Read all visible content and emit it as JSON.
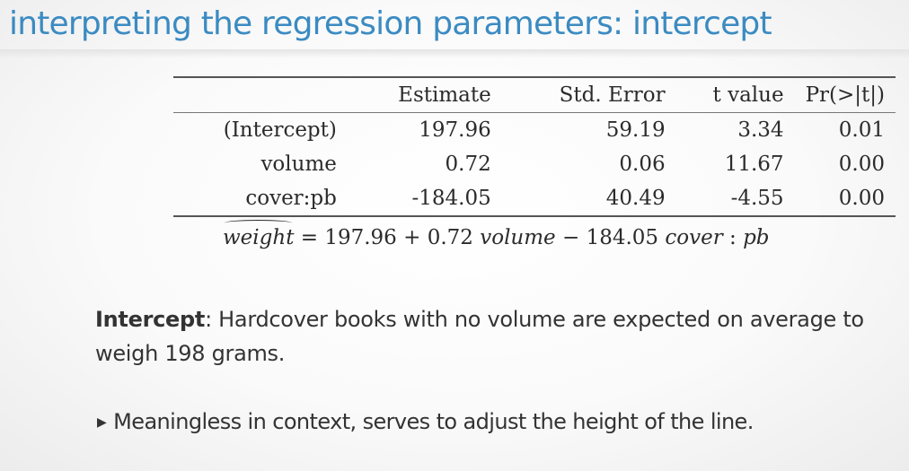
{
  "slide": {
    "title": "interpreting the regression parameters: intercept"
  },
  "table": {
    "headers": [
      "",
      "Estimate",
      "Std. Error",
      "t value",
      "Pr(>|t|)"
    ],
    "rows": [
      [
        "(Intercept)",
        "197.96",
        "59.19",
        "3.34",
        "0.01"
      ],
      [
        "volume",
        "0.72",
        "0.06",
        "11.67",
        "0.00"
      ],
      [
        "cover:pb",
        "-184.05",
        "40.49",
        "-4.55",
        "0.00"
      ]
    ]
  },
  "equation": {
    "lhs": "weight",
    "equals": " = 197.96 + 0.72 ",
    "term1": "volume",
    "minus": " − 184.05 ",
    "term2": "cover",
    "colon": " : ",
    "term3": "pb"
  },
  "explanation": {
    "term": "Intercept",
    "text": ": Hardcover books with no volume are expected on average to weigh 198 grams."
  },
  "bullet": {
    "marker": "▶",
    "text": "Meaningless in context, serves to adjust the height of the line."
  }
}
